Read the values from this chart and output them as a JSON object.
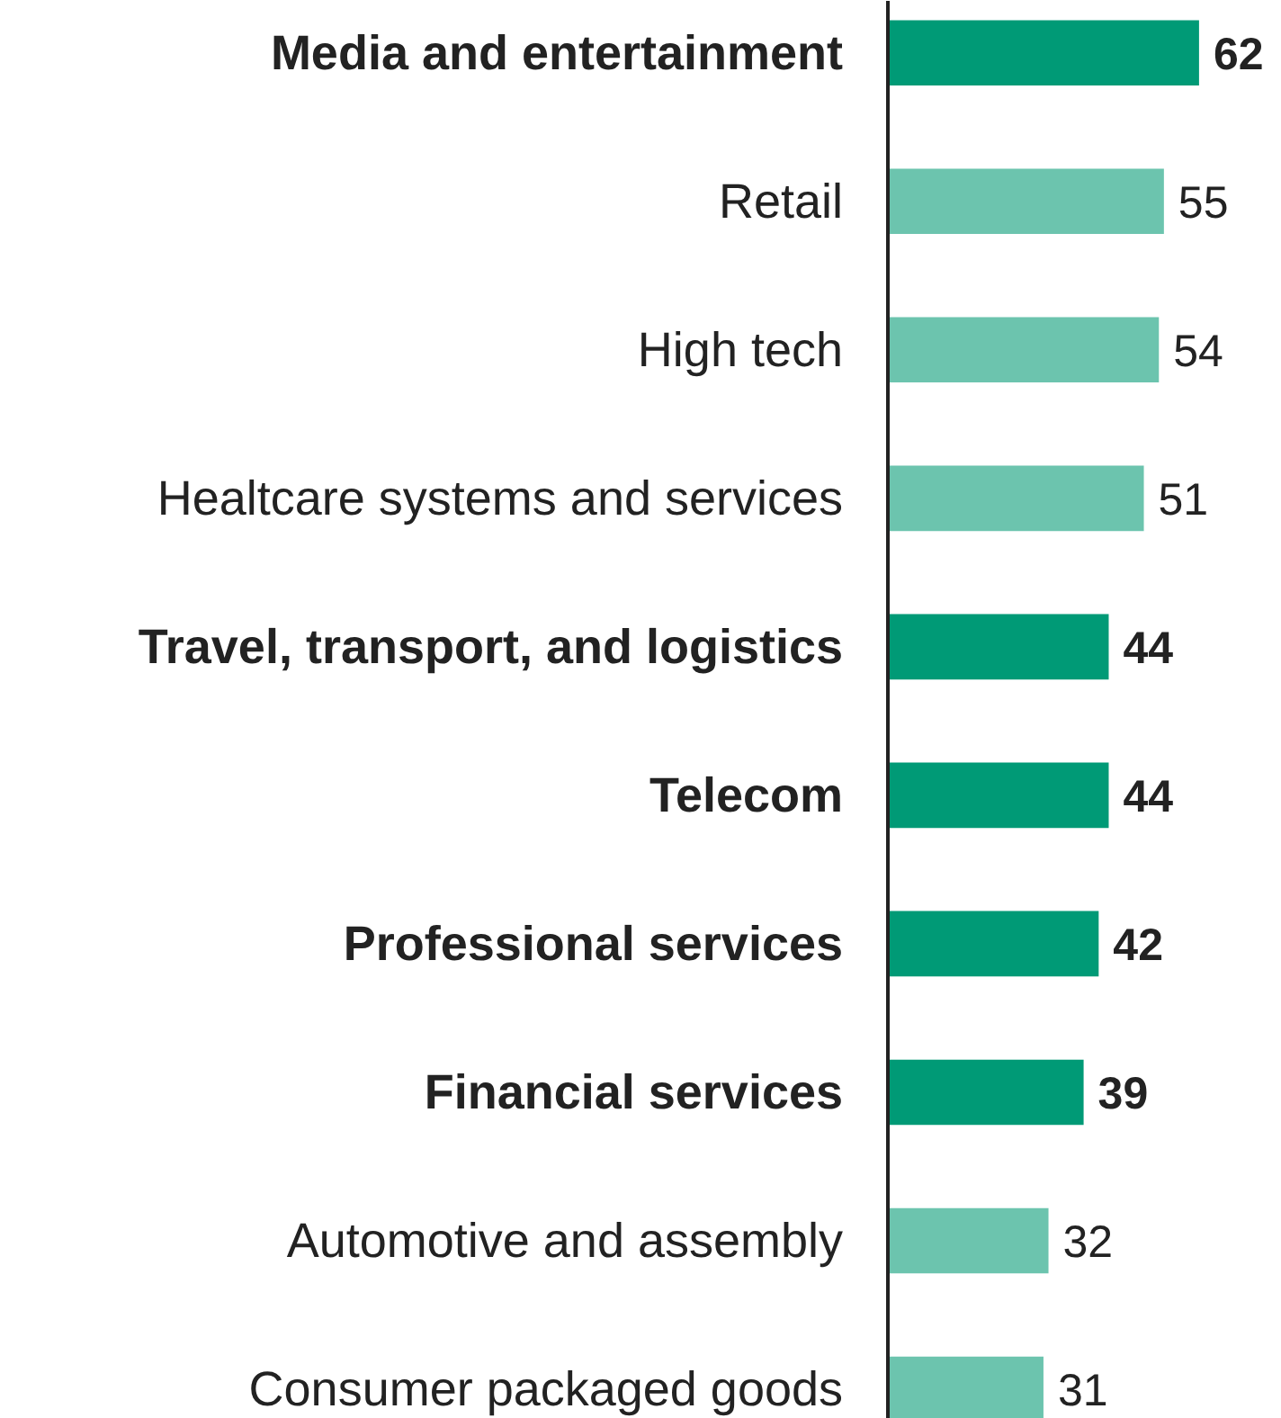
{
  "chart_data": {
    "type": "bar",
    "orientation": "horizontal",
    "relative": false,
    "data_labels": true,
    "grid": false,
    "categories": [
      "Media and entertainment",
      "Retail",
      "High tech",
      "Healtcare systems and services",
      "Travel, transport, and logistics",
      "Telecom",
      "Professional services",
      "Financial services",
      "Automotive and assembly",
      "Consumer packaged goods"
    ],
    "values": [
      62,
      55,
      54,
      51,
      44,
      44,
      42,
      39,
      32,
      31
    ],
    "colors": [
      "#009a76",
      "#6cc4ae",
      "#6cc4ae",
      "#6cc4ae",
      "#009a76",
      "#009a76",
      "#009a76",
      "#009a76",
      "#6cc4ae",
      "#6cc4ae"
    ]
  }
}
